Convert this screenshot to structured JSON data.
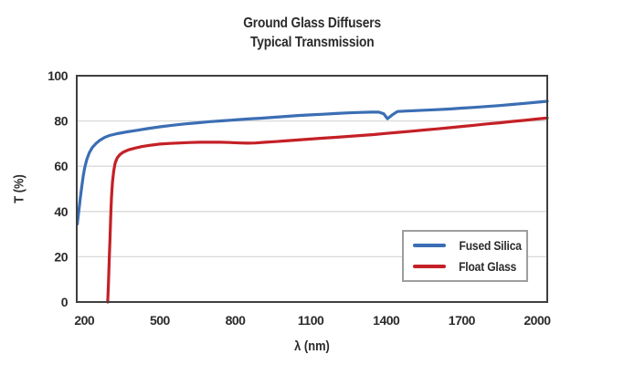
{
  "title": {
    "line1": "Ground Glass Diffusers",
    "line2": "Typical Transmission"
  },
  "chart_data": {
    "type": "line",
    "title": "Ground Glass Diffusers",
    "subtitle": "Typical Transmission",
    "xlabel": "λ (nm)",
    "ylabel": "T (%)",
    "xlim": [
      170,
      2040
    ],
    "ylim": [
      0,
      100
    ],
    "x_ticks": [
      200,
      500,
      800,
      1100,
      1400,
      1700,
      2000
    ],
    "y_ticks": [
      0,
      20,
      40,
      60,
      80,
      100
    ],
    "grid": "horizontal",
    "legend_position": "inside-lower-right",
    "colors": {
      "fused_silica": "#3B6EB4",
      "float_glass": "#C42026",
      "grid": "#D9D9D9",
      "plot_border": "#3F3F3F",
      "text": "#2B2B2B",
      "legend_border": "#9E9E9E"
    },
    "series": [
      {
        "name": "Fused Silica",
        "color": "#3B6EB4",
        "points": [
          [
            172,
            34.5
          ],
          [
            178,
            40
          ],
          [
            184,
            46
          ],
          [
            190,
            51
          ],
          [
            196,
            56
          ],
          [
            202,
            59.5
          ],
          [
            210,
            63
          ],
          [
            220,
            66
          ],
          [
            232,
            68.3
          ],
          [
            246,
            70
          ],
          [
            262,
            71.5
          ],
          [
            280,
            72.7
          ],
          [
            300,
            73.6
          ],
          [
            330,
            74.4
          ],
          [
            370,
            75.2
          ],
          [
            410,
            75.9
          ],
          [
            450,
            76.6
          ],
          [
            500,
            77.4
          ],
          [
            550,
            78.1
          ],
          [
            600,
            78.7
          ],
          [
            650,
            79.2
          ],
          [
            700,
            79.7
          ],
          [
            750,
            80.1
          ],
          [
            800,
            80.5
          ],
          [
            850,
            80.9
          ],
          [
            900,
            81.2
          ],
          [
            950,
            81.6
          ],
          [
            1000,
            82
          ],
          [
            1050,
            82.4
          ],
          [
            1100,
            82.7
          ],
          [
            1150,
            83
          ],
          [
            1200,
            83.3
          ],
          [
            1250,
            83.6
          ],
          [
            1300,
            83.8
          ],
          [
            1340,
            83.9
          ],
          [
            1370,
            83.9
          ],
          [
            1390,
            83.2
          ],
          [
            1405,
            81
          ],
          [
            1425,
            82.8
          ],
          [
            1445,
            84.2
          ],
          [
            1480,
            84.4
          ],
          [
            1520,
            84.6
          ],
          [
            1560,
            84.8
          ],
          [
            1600,
            85
          ],
          [
            1650,
            85.3
          ],
          [
            1700,
            85.7
          ],
          [
            1750,
            86
          ],
          [
            1800,
            86.4
          ],
          [
            1850,
            86.8
          ],
          [
            1900,
            87.3
          ],
          [
            1950,
            87.8
          ],
          [
            2000,
            88.3
          ],
          [
            2040,
            88.7
          ]
        ]
      },
      {
        "name": "Float Glass",
        "color": "#C42026",
        "points": [
          [
            293,
            0
          ],
          [
            296,
            8
          ],
          [
            299,
            18
          ],
          [
            302,
            28
          ],
          [
            305,
            38
          ],
          [
            308,
            46
          ],
          [
            312,
            53
          ],
          [
            317,
            58
          ],
          [
            323,
            61.5
          ],
          [
            331,
            63.7
          ],
          [
            342,
            65.2
          ],
          [
            356,
            66.3
          ],
          [
            375,
            67.2
          ],
          [
            400,
            68
          ],
          [
            430,
            68.7
          ],
          [
            465,
            69.3
          ],
          [
            500,
            69.8
          ],
          [
            540,
            70.1
          ],
          [
            580,
            70.3
          ],
          [
            620,
            70.5
          ],
          [
            660,
            70.6
          ],
          [
            700,
            70.6
          ],
          [
            740,
            70.6
          ],
          [
            780,
            70.5
          ],
          [
            820,
            70.3
          ],
          [
            850,
            70.2
          ],
          [
            880,
            70.3
          ],
          [
            920,
            70.6
          ],
          [
            960,
            70.9
          ],
          [
            1000,
            71.2
          ],
          [
            1050,
            71.6
          ],
          [
            1100,
            72
          ],
          [
            1150,
            72.4
          ],
          [
            1200,
            72.8
          ],
          [
            1250,
            73.2
          ],
          [
            1300,
            73.6
          ],
          [
            1350,
            74
          ],
          [
            1400,
            74.5
          ],
          [
            1450,
            75
          ],
          [
            1500,
            75.5
          ],
          [
            1550,
            76
          ],
          [
            1600,
            76.5
          ],
          [
            1650,
            77
          ],
          [
            1700,
            77.6
          ],
          [
            1750,
            78.1
          ],
          [
            1800,
            78.7
          ],
          [
            1850,
            79.2
          ],
          [
            1900,
            79.8
          ],
          [
            1950,
            80.3
          ],
          [
            2000,
            80.9
          ],
          [
            2040,
            81.3
          ]
        ]
      }
    ]
  }
}
